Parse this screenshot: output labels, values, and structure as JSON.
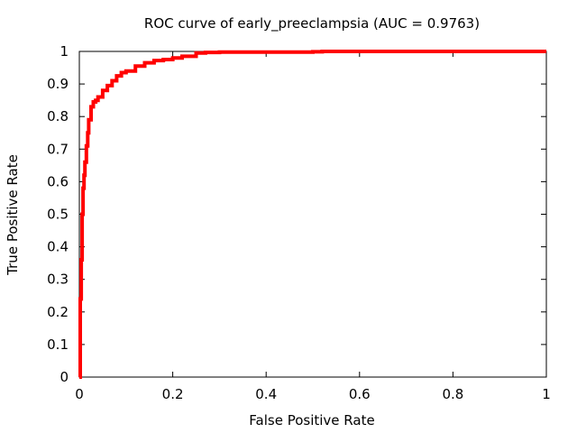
{
  "chart_data": {
    "type": "line",
    "title": "ROC curve of early_preeclampsia (AUC = 0.9763)",
    "xlabel": "False Positive Rate",
    "ylabel": "True Positive Rate",
    "xlim": [
      0,
      1
    ],
    "ylim": [
      0,
      1
    ],
    "xticks": [
      "0",
      "0.2",
      "0.4",
      "0.6",
      "0.8",
      "1"
    ],
    "yticks": [
      "0",
      "0.1",
      "0.2",
      "0.3",
      "0.4",
      "0.5",
      "0.6",
      "0.7",
      "0.8",
      "0.9",
      "1"
    ],
    "grid": false,
    "legend": "none",
    "colors": {
      "line": "#ff0000",
      "axes": "#000000",
      "background": "#ffffff"
    },
    "series": [
      {
        "x": [
          0,
          0.002,
          0.004,
          0.006,
          0.008,
          0.01,
          0.012,
          0.015,
          0.018,
          0.02,
          0.025,
          0.03,
          0.035,
          0.04,
          0.05,
          0.06,
          0.07,
          0.08,
          0.09,
          0.1,
          0.12,
          0.14,
          0.16,
          0.18,
          0.2,
          0.22,
          0.25,
          0.27,
          0.3,
          0.4,
          0.5,
          0.52,
          0.6,
          0.8,
          1.0
        ],
        "y": [
          0,
          0.24,
          0.36,
          0.5,
          0.58,
          0.62,
          0.66,
          0.71,
          0.75,
          0.79,
          0.83,
          0.845,
          0.85,
          0.86,
          0.88,
          0.895,
          0.91,
          0.925,
          0.935,
          0.94,
          0.955,
          0.965,
          0.972,
          0.975,
          0.98,
          0.985,
          0.995,
          0.997,
          0.998,
          0.998,
          0.999,
          1.0,
          1.0,
          1.0,
          1.0
        ]
      }
    ]
  }
}
